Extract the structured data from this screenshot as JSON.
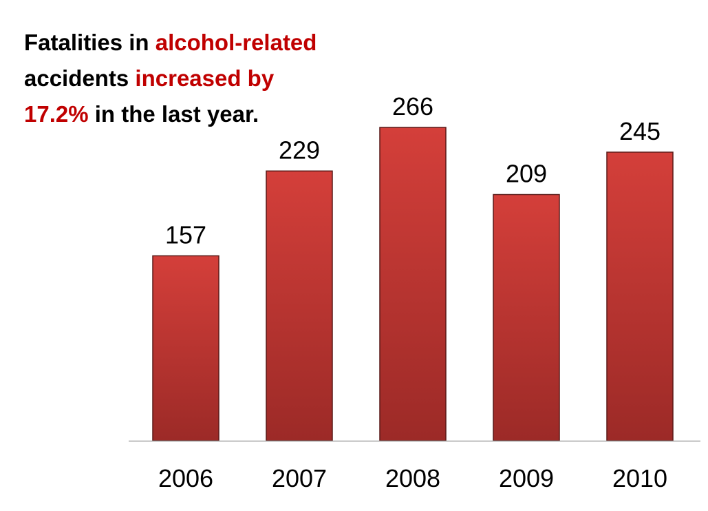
{
  "headline": {
    "part1": "Fatalities in ",
    "part2": "alcohol-related",
    "part3": "accidents ",
    "part4": "increased by",
    "part5": "17.2%",
    "part6": " in the last year."
  },
  "colors": {
    "bar_top": "#d43f3a",
    "bar_bottom": "#9c2a27",
    "bar_border": "#5a1a18",
    "highlight_text": "#c00000",
    "axis": "#a6a6a6"
  },
  "chart_data": {
    "type": "bar",
    "title": "",
    "xlabel": "",
    "ylabel": "",
    "categories": [
      "2006",
      "2007",
      "2008",
      "2009",
      "2010"
    ],
    "values": [
      157,
      229,
      266,
      209,
      245
    ],
    "ylim": [
      0,
      266
    ],
    "grid": false,
    "legend": "none",
    "data_labels": true
  }
}
